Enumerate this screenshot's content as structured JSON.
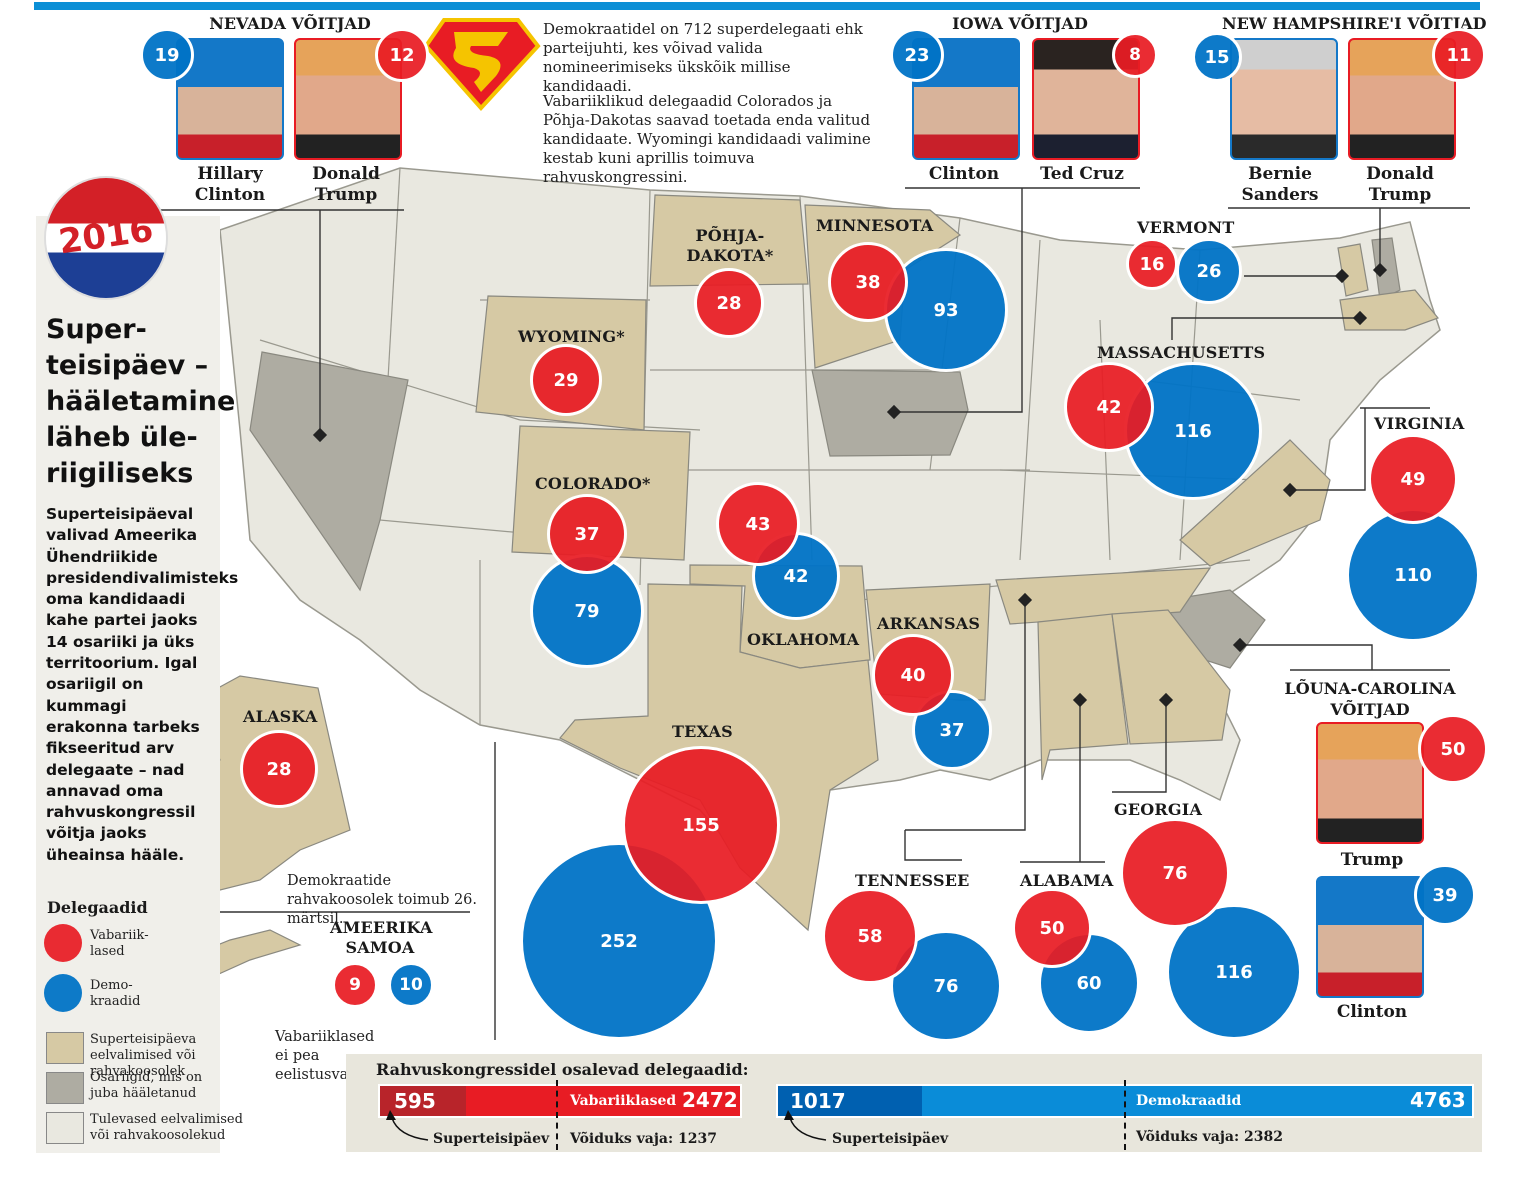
{
  "badge": "2016",
  "headline": "Super-teisipäev – hääletamine läheb üle-riigiliseks",
  "lede": "Superteisipäeval valivad Ameerika Ühendriikide presidendivalimisteks oma kandidaadi kahe partei jaoks 14 osariiki ja üks territoorium. Igal osariigil on kummagi erakonna tarbeks fikseeritud arv delegaate – nad annavad oma rahvuskongressil võitja jaoks üheainsa hääle.",
  "superdelegates_note": "Demokraatidel on 712 superdelegaati ehk parteijuhti, kes võivad valida nomineerimiseks ükskõik millise kandidaadi.",
  "republican_note": "Vabariiklikud delegaadid Colorados ja Põhja-Dakotas saavad toetada enda valitud kandidaate. Wyomingi kandidaadi valimine kestab kuni aprillis toimuva rahvuskongressini.",
  "samoa_dem_note": "Demokraatide rahvakoosolek toimub 26. märtsil.",
  "samoa_rep_note": "Vabariiklased ei pea eelistusvalimisi.",
  "winners": {
    "nevada": {
      "title": "NEVADA VÕITJAD",
      "left": {
        "name": "Hillary Clinton",
        "votes": "19"
      },
      "right": {
        "name": "Donald Trump",
        "votes": "12"
      }
    },
    "iowa": {
      "title": "IOWA VÕITJAD",
      "left": {
        "name": "Clinton",
        "votes": "23"
      },
      "right": {
        "name": "Ted Cruz",
        "votes": "8"
      }
    },
    "nh": {
      "title": "NEW HAMPSHIRE'I VÕITJAD",
      "left": {
        "name": "Bernie Sanders",
        "votes": "15"
      },
      "right": {
        "name": "Donald Trump",
        "votes": "11"
      }
    },
    "sc": {
      "title": "LÕUNA-CAROLINA VÕITJAD",
      "trump": {
        "name": "Trump",
        "votes": "50"
      },
      "clinton": {
        "name": "Clinton",
        "votes": "39"
      }
    }
  },
  "states": {
    "pohja_dakota": {
      "label": "PÕHJA-DAKOTA*",
      "rep": "28"
    },
    "minnesota": {
      "label": "MINNESOTA",
      "rep": "38",
      "dem": "93"
    },
    "wyoming": {
      "label": "WYOMING*",
      "rep": "29"
    },
    "colorado": {
      "label": "COLORADO*",
      "rep": "37",
      "dem": "79"
    },
    "oklahoma": {
      "label": "OKLAHOMA",
      "rep": "43",
      "dem": "42"
    },
    "arkansas": {
      "label": "ARKANSAS",
      "rep": "40",
      "dem": "37"
    },
    "texas": {
      "label": "TEXAS",
      "rep": "155",
      "dem": "252"
    },
    "tennessee": {
      "label": "TENNESSEE",
      "rep": "58",
      "dem": "76"
    },
    "alabama": {
      "label": "ALABAMA",
      "rep": "50",
      "dem": "60"
    },
    "georgia": {
      "label": "GEORGIA",
      "rep": "76",
      "dem": "116"
    },
    "virginia": {
      "label": "VIRGINIA",
      "rep": "49",
      "dem": "110"
    },
    "massachusetts": {
      "label": "MASSACHUSETTS",
      "rep": "42",
      "dem": "116"
    },
    "vermont": {
      "label": "VERMONT",
      "rep": "16",
      "dem": "26"
    },
    "alaska": {
      "label": "ALASKA",
      "rep": "28"
    },
    "samoa": {
      "label": "AMEERIKA SAMOA",
      "rep": "9",
      "dem": "10"
    }
  },
  "legend": {
    "title": "Delegaadid",
    "rep": "Vabariik-lased",
    "dem": "Demo-kraadid",
    "tan": "Superteisipäeva eelvalimised või rahvakoosolek",
    "gray": "Osariigid, mis on juba hääletanud",
    "light": "Tulevased eelvalimised või rahvakoosolekud"
  },
  "bars": {
    "title": "Rahvuskongressidel osalevad delegaadid:",
    "rep": {
      "super": "595",
      "label": "Vabariiklased",
      "total": "2472",
      "need": "Võiduks vaja: 1237",
      "arrow": "Superteisipäev"
    },
    "dem": {
      "super": "1017",
      "label": "Demokraadid",
      "total": "4763",
      "need": "Võiduks vaja: 2382",
      "arrow": "Superteisipäev"
    }
  },
  "colors": {
    "rep": "#e81c24",
    "dem": "#0073c6",
    "tan": "#d6c9a4",
    "gray": "#aeaca2",
    "light": "#e9e8e0"
  }
}
